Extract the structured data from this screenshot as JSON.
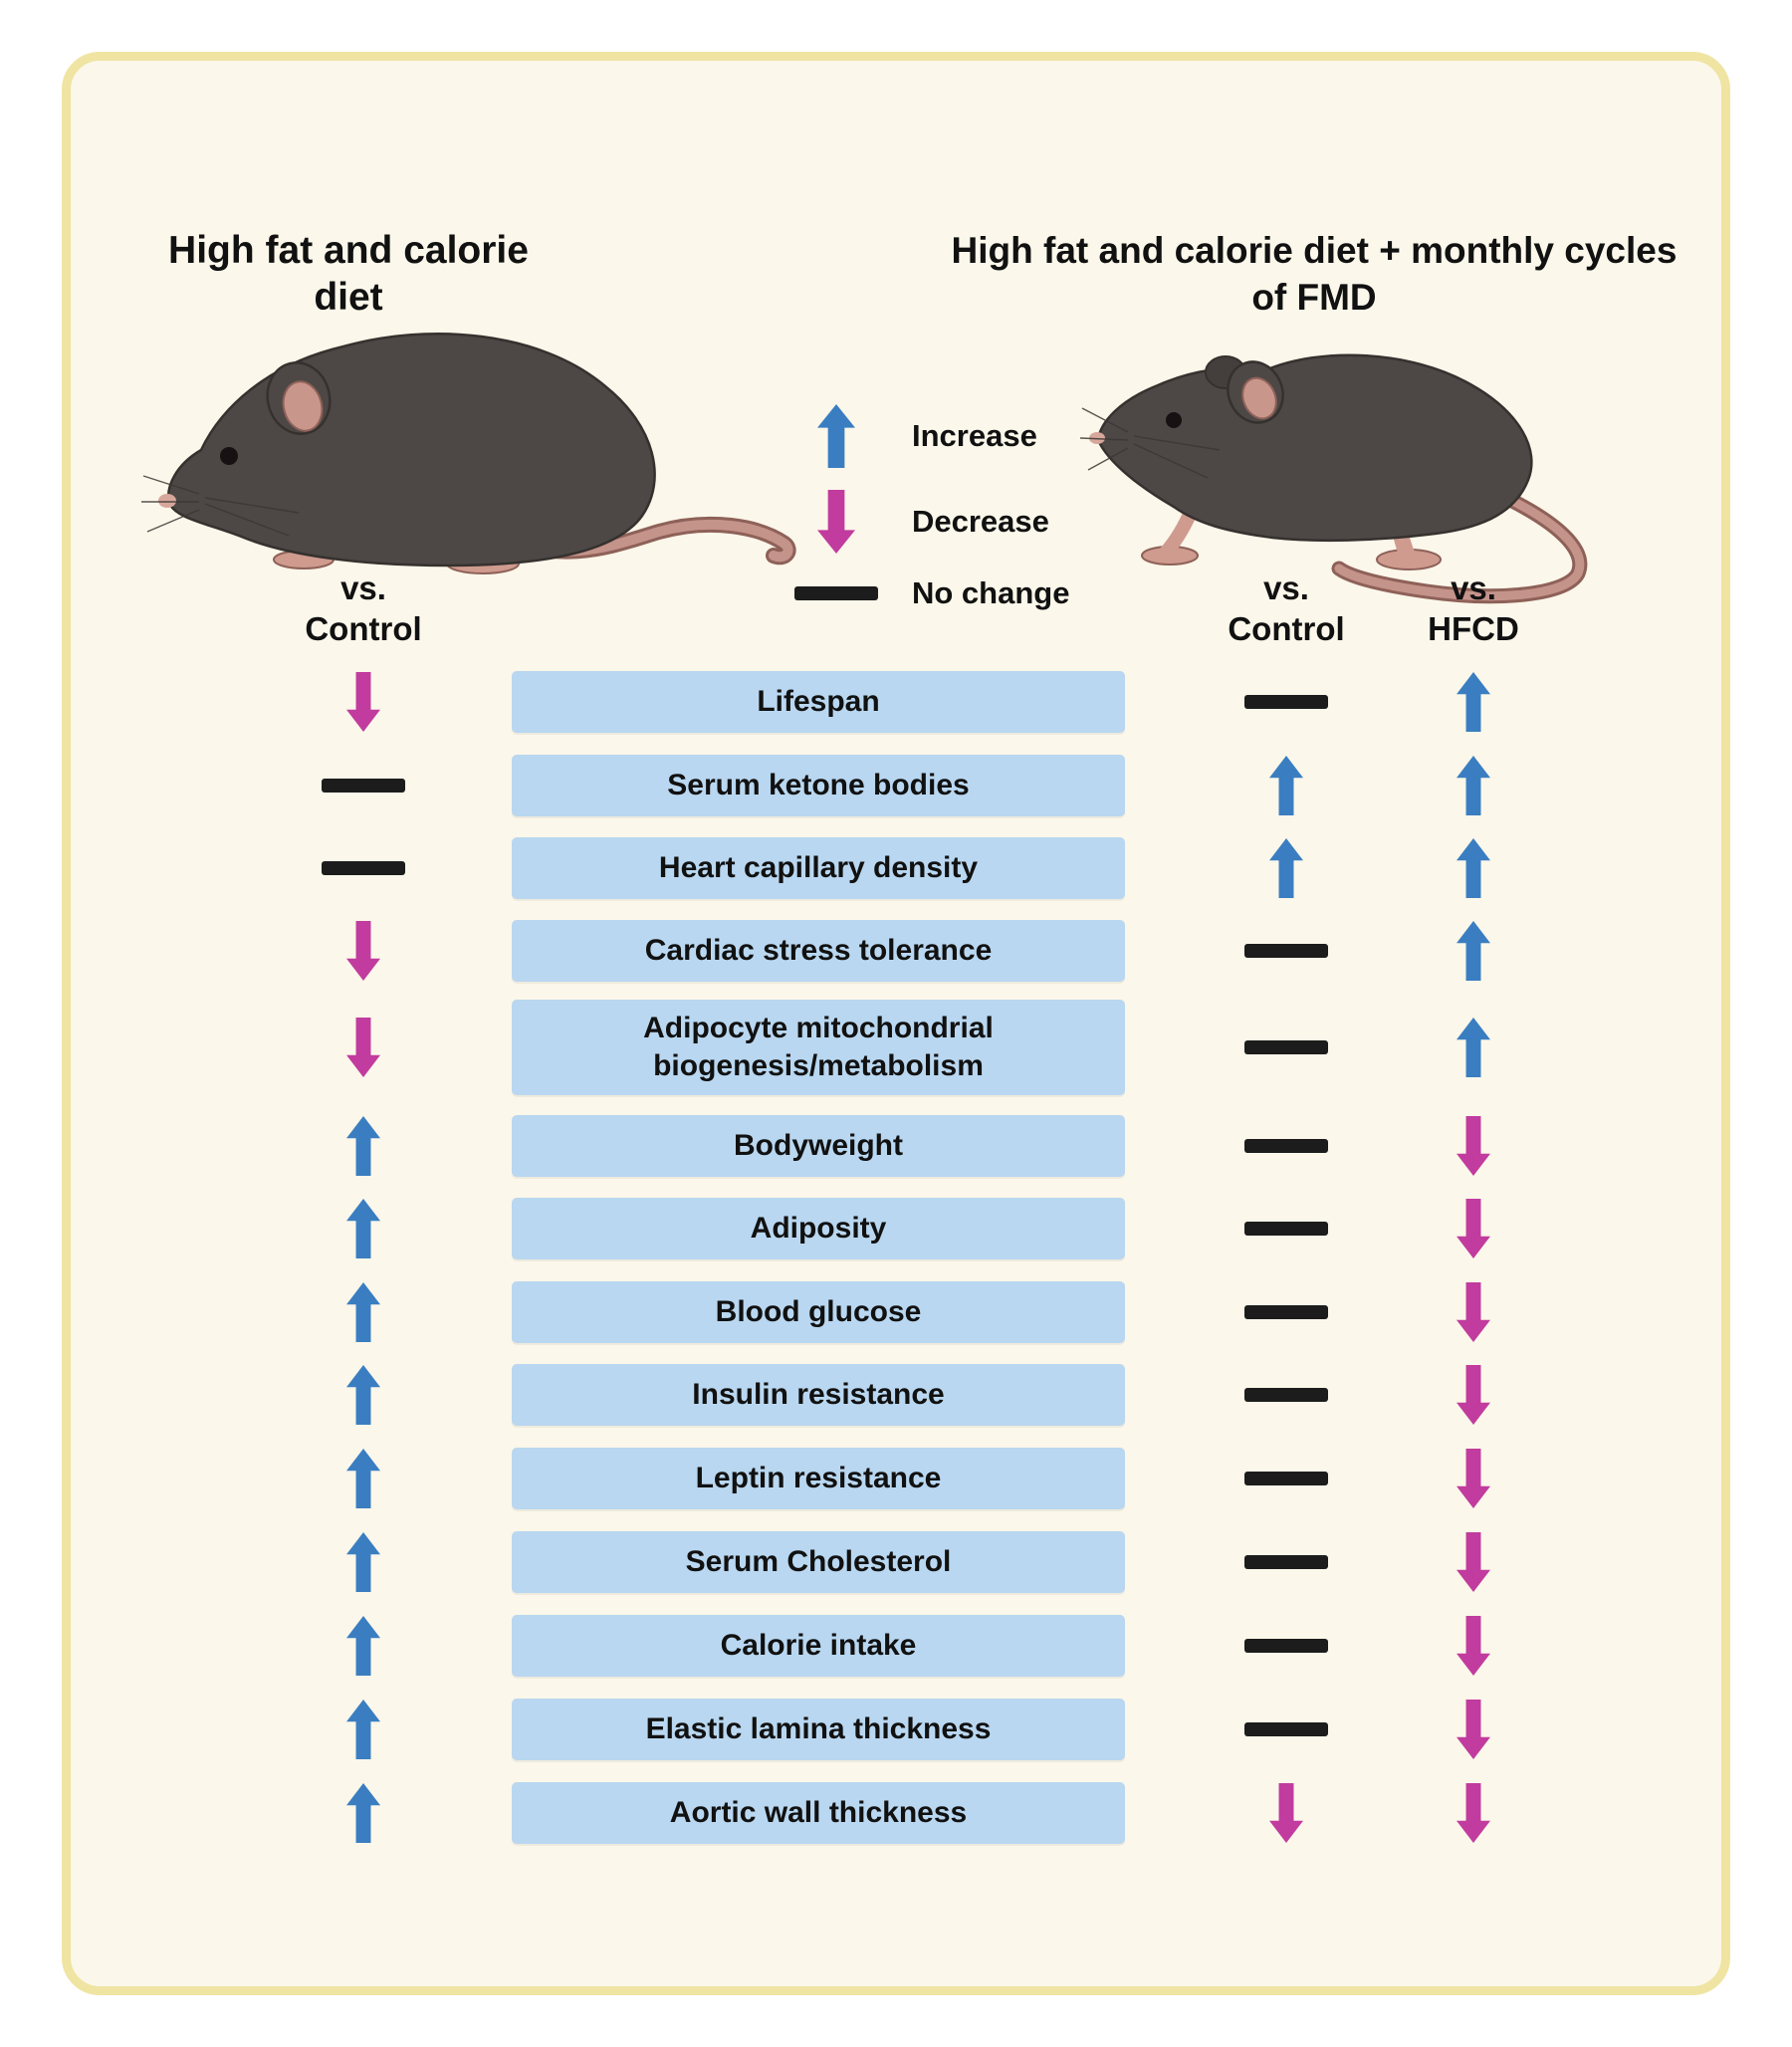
{
  "left_group": {
    "title": [
      "High fat and calorie",
      "diet"
    ],
    "header": [
      "vs.",
      "Control"
    ]
  },
  "right_group": {
    "title": [
      "High fat and calorie diet + monthly cycles",
      "of FMD"
    ],
    "headers": [
      [
        "vs.",
        "Control"
      ],
      [
        "vs.",
        "HFCD"
      ]
    ]
  },
  "legend": {
    "increase": "Increase",
    "decrease": "Decrease",
    "no_change": "No change"
  },
  "rows": [
    {
      "label": "Lifespan",
      "hfcd_vs_control": "down",
      "fmd_vs_control": "none",
      "fmd_vs_hfcd": "up"
    },
    {
      "label": "Serum ketone bodies",
      "hfcd_vs_control": "none",
      "fmd_vs_control": "up",
      "fmd_vs_hfcd": "up"
    },
    {
      "label": "Heart capillary density",
      "hfcd_vs_control": "none",
      "fmd_vs_control": "up",
      "fmd_vs_hfcd": "up"
    },
    {
      "label": "Cardiac stress tolerance",
      "hfcd_vs_control": "down",
      "fmd_vs_control": "none",
      "fmd_vs_hfcd": "up"
    },
    {
      "label": "Adipocyte mitochondrial biogenesis/metabolism",
      "hfcd_vs_control": "down",
      "fmd_vs_control": "none",
      "fmd_vs_hfcd": "up"
    },
    {
      "label": "Bodyweight",
      "hfcd_vs_control": "up",
      "fmd_vs_control": "none",
      "fmd_vs_hfcd": "down"
    },
    {
      "label": "Adiposity",
      "hfcd_vs_control": "up",
      "fmd_vs_control": "none",
      "fmd_vs_hfcd": "down"
    },
    {
      "label": "Blood glucose",
      "hfcd_vs_control": "up",
      "fmd_vs_control": "none",
      "fmd_vs_hfcd": "down"
    },
    {
      "label": "Insulin resistance",
      "hfcd_vs_control": "up",
      "fmd_vs_control": "none",
      "fmd_vs_hfcd": "down"
    },
    {
      "label": "Leptin resistance",
      "hfcd_vs_control": "up",
      "fmd_vs_control": "none",
      "fmd_vs_hfcd": "down"
    },
    {
      "label": "Serum Cholesterol",
      "hfcd_vs_control": "up",
      "fmd_vs_control": "none",
      "fmd_vs_hfcd": "down"
    },
    {
      "label": "Calorie intake",
      "hfcd_vs_control": "up",
      "fmd_vs_control": "none",
      "fmd_vs_hfcd": "down"
    },
    {
      "label": "Elastic lamina thickness",
      "hfcd_vs_control": "up",
      "fmd_vs_control": "none",
      "fmd_vs_hfcd": "down"
    },
    {
      "label": "Aortic wall thickness",
      "hfcd_vs_control": "up",
      "fmd_vs_control": "down",
      "fmd_vs_hfcd": "down"
    }
  ],
  "colors": {
    "increase": "#3a7ec1",
    "decrease": "#c13c9e",
    "no_change": "#1c1c1c",
    "row_fill": "#b9d7f0",
    "panel_fill": "#fbf7ea",
    "panel_border": "#f0e4a3"
  }
}
